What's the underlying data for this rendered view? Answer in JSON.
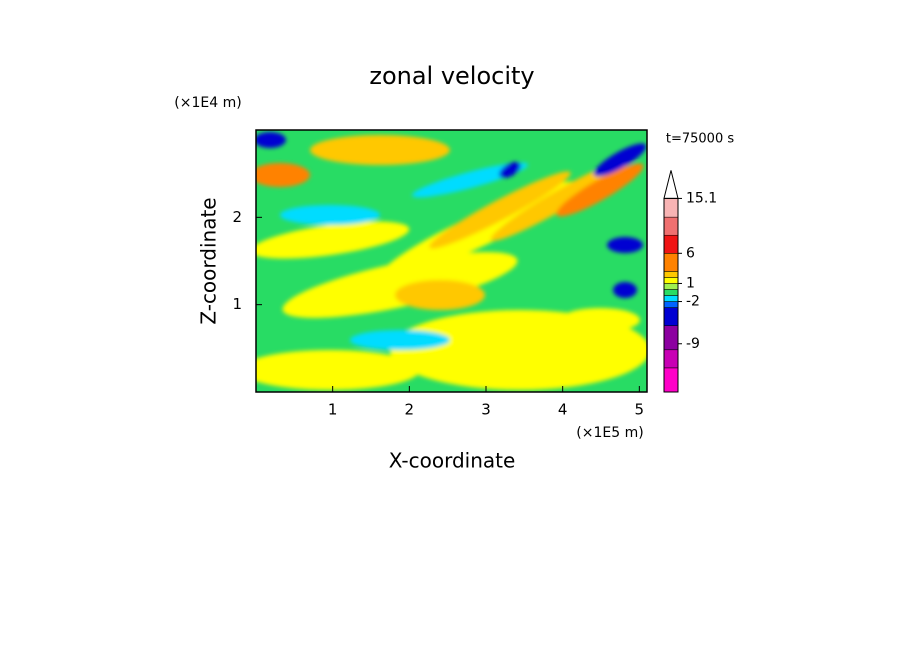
{
  "chart_data": {
    "type": "contour",
    "title": "zonal velocity",
    "x_label": "X-coordinate",
    "y_label": "Z-coordinate",
    "x_unit": "(×1E5 m)",
    "y_unit": "(×1E4 m)",
    "annotation": "t=75000 s",
    "xlim": [
      0,
      5.1
    ],
    "xticks": [
      1,
      2,
      3,
      4,
      5
    ],
    "ylim": [
      0,
      3
    ],
    "yticks": [
      1,
      2
    ],
    "colorbar": {
      "lim": [
        -17,
        16
      ],
      "levels": [
        -17,
        -13,
        -10,
        -6,
        -3,
        -2,
        -1,
        0,
        1,
        2,
        3,
        6,
        9,
        12,
        15.1
      ],
      "colors": [
        "#ff00c8",
        "#c800b4",
        "#8c00a0",
        "#0000d2",
        "#0064ff",
        "#00dcff",
        "#28dc64",
        "#a0f050",
        "#ffff00",
        "#ffc800",
        "#ff8200",
        "#f01414",
        "#f07070",
        "#f8b4b4"
      ],
      "ticks": [
        15.1,
        6,
        1,
        -2,
        -9
      ]
    }
  }
}
